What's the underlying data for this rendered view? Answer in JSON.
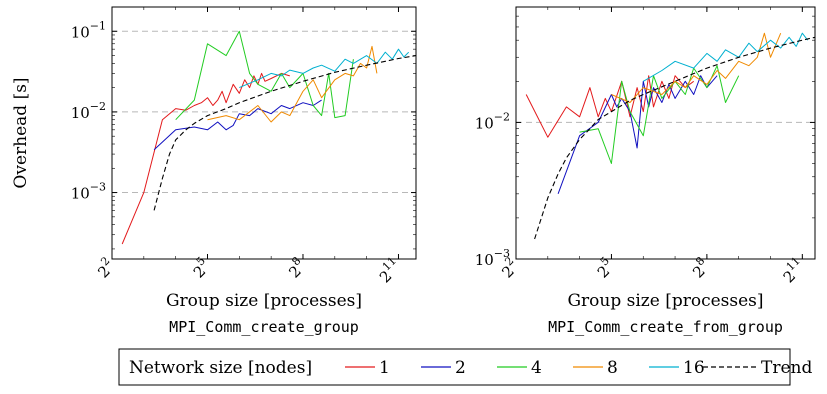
{
  "chart_data": [
    {
      "type": "line",
      "title": "",
      "xlabel": "Group size [processes]",
      "subcaption": "MPI_Comm_create_group",
      "ylabel": "Overhead [s]",
      "x_scale": "log2",
      "y_scale": "log10",
      "xlim": [
        4,
        3000
      ],
      "ylim": [
        0.00015,
        0.2
      ],
      "x_ticks": [
        {
          "value": 4,
          "base": "2",
          "exp": "2"
        },
        {
          "value": 32,
          "base": "2",
          "exp": "5"
        },
        {
          "value": 256,
          "base": "2",
          "exp": "8"
        },
        {
          "value": 2048,
          "base": "2",
          "exp": "11"
        }
      ],
      "y_ticks": [
        {
          "value": 0.001,
          "base": "10",
          "exp": "−3"
        },
        {
          "value": 0.01,
          "base": "10",
          "exp": "−2"
        },
        {
          "value": 0.1,
          "base": "10",
          "exp": "−1"
        }
      ],
      "grid": "horizontal dashed at major y ticks",
      "series": [
        {
          "name": "1",
          "color": "#e31a1c",
          "x": [
            5,
            8,
            12,
            16,
            20,
            24,
            28,
            32,
            36,
            40,
            44,
            48,
            56,
            64,
            72,
            80,
            88,
            96,
            104,
            112,
            128,
            160,
            192
          ],
          "y": [
            0.00023,
            0.001,
            0.008,
            0.011,
            0.0105,
            0.012,
            0.013,
            0.015,
            0.012,
            0.014,
            0.018,
            0.013,
            0.022,
            0.017,
            0.025,
            0.02,
            0.028,
            0.022,
            0.03,
            0.024,
            0.026,
            0.03,
            0.028
          ]
        },
        {
          "name": "2",
          "color": "#1010c0",
          "x": [
            10,
            16,
            24,
            32,
            40,
            48,
            56,
            64,
            80,
            96,
            128,
            160,
            192,
            256,
            320,
            384
          ],
          "y": [
            0.0034,
            0.006,
            0.0065,
            0.006,
            0.0075,
            0.006,
            0.0068,
            0.0095,
            0.009,
            0.011,
            0.0095,
            0.012,
            0.011,
            0.013,
            0.012,
            0.014
          ]
        },
        {
          "name": "4",
          "color": "#22cc22",
          "x": [
            16,
            24,
            32,
            48,
            64,
            80,
            96,
            128,
            160,
            192,
            256,
            320,
            384,
            448,
            512,
            640,
            768
          ],
          "y": [
            0.008,
            0.014,
            0.07,
            0.05,
            0.1,
            0.03,
            0.022,
            0.018,
            0.03,
            0.02,
            0.03,
            0.012,
            0.009,
            0.03,
            0.0085,
            0.009,
            0.045
          ]
        },
        {
          "name": "8",
          "color": "#f08a00",
          "x": [
            32,
            48,
            64,
            96,
            128,
            160,
            192,
            256,
            320,
            384,
            512,
            640,
            768,
            896,
            1024,
            1152,
            1280
          ],
          "y": [
            0.008,
            0.009,
            0.008,
            0.012,
            0.0075,
            0.01,
            0.009,
            0.018,
            0.025,
            0.015,
            0.025,
            0.03,
            0.028,
            0.04,
            0.035,
            0.065,
            0.03
          ]
        },
        {
          "name": "16",
          "color": "#00b0d0",
          "x": [
            64,
            96,
            128,
            160,
            192,
            256,
            320,
            384,
            512,
            640,
            768,
            1024,
            1280,
            1536,
            1792,
            2048,
            2304,
            2560
          ],
          "y": [
            0.02,
            0.025,
            0.03,
            0.028,
            0.033,
            0.03,
            0.035,
            0.038,
            0.032,
            0.045,
            0.04,
            0.05,
            0.04,
            0.055,
            0.045,
            0.06,
            0.048,
            0.055
          ]
        },
        {
          "name": "Trend",
          "color": "#000000",
          "dashed": true,
          "x": [
            10,
            12,
            14,
            16,
            20,
            24,
            32,
            48,
            64,
            128,
            256,
            512,
            1024,
            2048,
            3000
          ],
          "y": [
            0.0006,
            0.0015,
            0.003,
            0.0045,
            0.006,
            0.0072,
            0.009,
            0.011,
            0.013,
            0.018,
            0.024,
            0.031,
            0.038,
            0.046,
            0.05
          ]
        }
      ]
    },
    {
      "type": "line",
      "title": "",
      "xlabel": "Group size [processes]",
      "subcaption": "MPI_Comm_create_from_group",
      "ylabel": "",
      "x_scale": "log2",
      "y_scale": "log10",
      "xlim": [
        4,
        2700
      ],
      "ylim": [
        0.001,
        0.07
      ],
      "x_ticks": [
        {
          "value": 4,
          "base": "2",
          "exp": "2"
        },
        {
          "value": 32,
          "base": "2",
          "exp": "5"
        },
        {
          "value": 256,
          "base": "2",
          "exp": "8"
        },
        {
          "value": 2048,
          "base": "2",
          "exp": "11"
        }
      ],
      "y_ticks": [
        {
          "value": 0.001,
          "base": "10",
          "exp": "−3"
        },
        {
          "value": 0.01,
          "base": "10",
          "exp": "−2"
        }
      ],
      "grid": "horizontal dashed at major y ticks",
      "series": [
        {
          "name": "1",
          "color": "#e31a1c",
          "x": [
            5,
            8,
            12,
            16,
            20,
            24,
            28,
            32,
            40,
            48,
            56,
            64,
            72,
            80,
            96,
            112,
            128,
            160,
            192
          ],
          "y": [
            0.016,
            0.0078,
            0.013,
            0.011,
            0.018,
            0.011,
            0.015,
            0.012,
            0.02,
            0.011,
            0.018,
            0.012,
            0.022,
            0.013,
            0.02,
            0.015,
            0.022,
            0.018,
            0.02
          ]
        },
        {
          "name": "2",
          "color": "#1010c0",
          "x": [
            10,
            16,
            24,
            32,
            36,
            40,
            48,
            56,
            64,
            72,
            80,
            96,
            112,
            128,
            160,
            192,
            224,
            256,
            320
          ],
          "y": [
            0.003,
            0.008,
            0.01,
            0.016,
            0.013,
            0.015,
            0.012,
            0.0065,
            0.02,
            0.013,
            0.018,
            0.014,
            0.019,
            0.015,
            0.02,
            0.016,
            0.022,
            0.018,
            0.022
          ]
        },
        {
          "name": "4",
          "color": "#22cc22",
          "x": [
            16,
            24,
            32,
            40,
            48,
            64,
            80,
            96,
            128,
            160,
            192,
            256,
            320,
            384,
            512
          ],
          "y": [
            0.0085,
            0.009,
            0.005,
            0.02,
            0.012,
            0.008,
            0.022,
            0.015,
            0.02,
            0.016,
            0.025,
            0.018,
            0.026,
            0.014,
            0.022
          ]
        },
        {
          "name": "8",
          "color": "#f08a00",
          "x": [
            32,
            48,
            64,
            96,
            128,
            160,
            192,
            256,
            320,
            384,
            512,
            640,
            768,
            896,
            1024,
            1280
          ],
          "y": [
            0.016,
            0.014,
            0.018,
            0.016,
            0.02,
            0.018,
            0.022,
            0.019,
            0.024,
            0.021,
            0.028,
            0.026,
            0.03,
            0.045,
            0.03,
            0.045
          ]
        },
        {
          "name": "16",
          "color": "#00b0d0",
          "x": [
            64,
            96,
            128,
            192,
            256,
            320,
            384,
            512,
            640,
            768,
            1024,
            1280,
            1536,
            1792,
            2048,
            2304
          ],
          "y": [
            0.02,
            0.024,
            0.028,
            0.025,
            0.032,
            0.028,
            0.034,
            0.03,
            0.038,
            0.033,
            0.04,
            0.035,
            0.042,
            0.036,
            0.045,
            0.04
          ]
        },
        {
          "name": "Trend",
          "color": "#000000",
          "dashed": true,
          "x": [
            6,
            8,
            10,
            12,
            16,
            20,
            24,
            32,
            48,
            64,
            128,
            256,
            512,
            1024,
            2048,
            2700
          ],
          "y": [
            0.0014,
            0.0028,
            0.0042,
            0.0055,
            0.0075,
            0.009,
            0.0105,
            0.012,
            0.0145,
            0.016,
            0.02,
            0.025,
            0.03,
            0.035,
            0.04,
            0.042
          ]
        }
      ]
    }
  ],
  "legend": {
    "title": "Network size [nodes]",
    "entries": [
      {
        "name": "1",
        "color": "#e31a1c"
      },
      {
        "name": "2",
        "color": "#1010c0"
      },
      {
        "name": "4",
        "color": "#22cc22"
      },
      {
        "name": "8",
        "color": "#f08a00"
      },
      {
        "name": "16",
        "color": "#00b0d0"
      },
      {
        "name": "Trend",
        "color": "#000000",
        "dashed": true
      }
    ]
  }
}
